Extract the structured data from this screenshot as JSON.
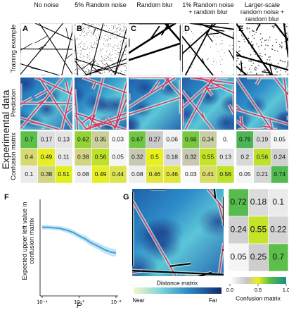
{
  "row_labels": {
    "group": "Experimental data",
    "training": "Training example",
    "prediction": "Prediction",
    "confusion": "Confusion matrix"
  },
  "panels": [
    {
      "letter": "A",
      "title": "No noise",
      "matrix": [
        [
          0.7,
          0.17,
          0.13
        ],
        [
          0.4,
          0.49,
          0.11
        ],
        [
          0.1,
          0.38,
          0.51
        ]
      ]
    },
    {
      "letter": "B",
      "title": "5% Random noise",
      "matrix": [
        [
          0.62,
          0.35,
          0.03
        ],
        [
          0.38,
          0.56,
          0.05
        ],
        [
          0.08,
          0.49,
          0.44
        ]
      ]
    },
    {
      "letter": "C",
      "title": "Random blur",
      "matrix": [
        [
          0.67,
          0.27,
          0.06
        ],
        [
          0.32,
          0.5,
          0.18
        ],
        [
          0.08,
          0.46,
          0.46
        ]
      ]
    },
    {
      "letter": "D",
      "title": "1% Random noise + random blur",
      "matrix": [
        [
          0.66,
          0.34,
          {
            "value": 0,
            "label": "0."
          }
        ],
        [
          0.32,
          0.55,
          0.13
        ],
        [
          0.03,
          0.41,
          0.56
        ]
      ]
    },
    {
      "letter": "E",
      "title": "Larger-scale random noise + random blur",
      "matrix": [
        [
          0.76,
          0.19,
          0.05
        ],
        [
          0.2,
          0.56,
          0.24
        ],
        [
          0.05,
          0.21,
          0.74
        ]
      ]
    }
  ],
  "chart_data": {
    "type": "line",
    "letter": "F",
    "xlabel": "P",
    "ylabel": "Expected upper left value in confusion matrix",
    "x": [
      0.0001,
      0.00015,
      0.0002,
      0.0003,
      0.0005,
      0.0007,
      0.001,
      0.0015,
      0.002,
      0.003,
      0.005,
      0.007,
      0.01
    ],
    "series": [
      {
        "color": "#3ba3d8",
        "values": [
          0.84,
          0.84,
          0.835,
          0.83,
          0.81,
          0.79,
          0.76,
          0.73,
          0.7,
          0.67,
          0.63,
          0.61,
          0.6
        ],
        "errors": [
          0.02,
          0.02,
          0.02,
          0.02,
          0.025,
          0.025,
          0.025,
          0.03,
          0.03,
          0.03,
          0.035,
          0.035,
          0.035
        ]
      }
    ],
    "xscale": "log",
    "xlim": [
      0.0001,
      0.01
    ],
    "xticks": [
      {
        "value": 0.0001,
        "label": "10⁻⁴"
      },
      {
        "value": 0.001,
        "label": "10⁻³"
      },
      {
        "value": 0.01,
        "label": "10⁻²"
      }
    ],
    "ylim": [
      0.2,
      1.1
    ]
  },
  "panel_g": {
    "letter": "G",
    "matrix": [
      [
        0.72,
        0.18,
        0.1
      ],
      [
        0.24,
        0.55,
        0.22
      ],
      [
        0.05,
        0.25,
        0.7
      ]
    ],
    "confusion_colorbar": {
      "title": "Confusion matrix",
      "ticks": [
        {
          "value": 0,
          "label": "0.0"
        },
        0.5,
        {
          "value": 1,
          "label": "1.0"
        }
      ]
    },
    "distance_colorbar": {
      "title": "Distance matrix",
      "low": "Near",
      "high": "Far"
    }
  }
}
